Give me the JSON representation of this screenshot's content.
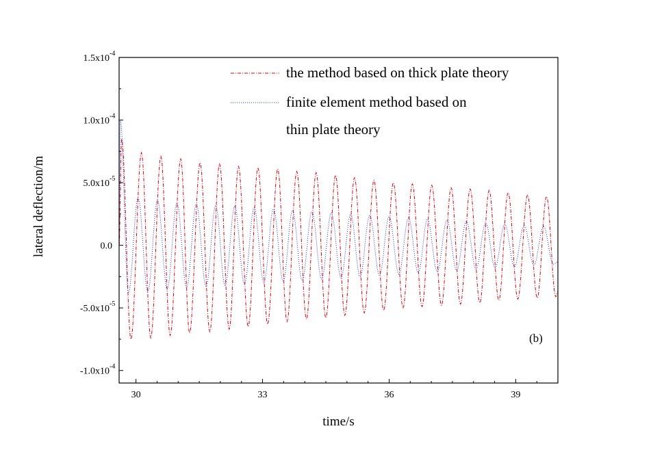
{
  "chart_data": {
    "type": "line",
    "xlabel": "time/s",
    "ylabel": "lateral deflection/m",
    "xlim": [
      29.6,
      40.0
    ],
    "ylim": [
      -0.00011,
      0.00015
    ],
    "x_ticks": [
      {
        "value": 30,
        "label": "30"
      },
      {
        "value": 33,
        "label": "33"
      },
      {
        "value": 36,
        "label": "36"
      },
      {
        "value": 39,
        "label": "39"
      }
    ],
    "y_ticks": [
      {
        "value": 0.00015,
        "mantissa": "1.5x10",
        "exponent": "-4"
      },
      {
        "value": 0.0001,
        "mantissa": "1.0x10",
        "exponent": "-4"
      },
      {
        "value": 5e-05,
        "mantissa": "5.0x10",
        "exponent": "-5"
      },
      {
        "value": 0,
        "mantissa": "0.0",
        "exponent": ""
      },
      {
        "value": -5e-05,
        "mantissa": "-5.0x10",
        "exponent": "-5"
      },
      {
        "value": -0.0001,
        "mantissa": "-1.0x10",
        "exponent": "-4"
      }
    ],
    "legend": {
      "placement": "top-right",
      "entries": [
        {
          "lines": [
            "the method based on thick plate theory"
          ]
        },
        {
          "lines": [
            "finite element method based on",
            "thin plate theory"
          ]
        }
      ]
    },
    "annotation": "(b)",
    "grid": false,
    "series": [
      {
        "color": "#d9000d",
        "dash": "dash-dot",
        "period_s": 0.4536,
        "start": 29.6,
        "end": 40.0,
        "peaks": [
          [
            29.66,
            8.5e-05
          ],
          [
            30.13,
            7.4e-05
          ],
          [
            30.59,
            7.1e-05
          ],
          [
            31.06,
            6.9e-05
          ],
          [
            31.52,
            6.6e-05
          ],
          [
            31.98,
            6.5e-05
          ],
          [
            32.43,
            6.3e-05
          ],
          [
            32.89,
            6.2e-05
          ],
          [
            33.36,
            6.1e-05
          ],
          [
            33.81,
            5.9e-05
          ],
          [
            34.27,
            5.8e-05
          ],
          [
            34.73,
            5.6e-05
          ],
          [
            35.18,
            5.4e-05
          ],
          [
            35.64,
            5.2e-05
          ],
          [
            36.1,
            5e-05
          ],
          [
            36.55,
            4.9e-05
          ],
          [
            37.01,
            4.8e-05
          ],
          [
            37.47,
            4.6e-05
          ],
          [
            37.92,
            4.5e-05
          ],
          [
            38.37,
            4.4e-05
          ],
          [
            38.82,
            4.2e-05
          ],
          [
            39.28,
            4e-05
          ],
          [
            39.73,
            3.9e-05
          ]
        ],
        "troughs": [
          [
            29.88,
            -7.5e-05
          ],
          [
            30.35,
            -7.4e-05
          ],
          [
            30.81,
            -7.2e-05
          ],
          [
            31.27,
            -7e-05
          ],
          [
            31.75,
            -6.9e-05
          ],
          [
            32.21,
            -6.7e-05
          ],
          [
            32.66,
            -6.5e-05
          ],
          [
            33.12,
            -6.3e-05
          ],
          [
            33.58,
            -6.1e-05
          ],
          [
            34.04,
            -5.9e-05
          ],
          [
            34.5,
            -5.8e-05
          ],
          [
            34.95,
            -5.6e-05
          ],
          [
            35.41,
            -5.4e-05
          ],
          [
            35.87,
            -5.2e-05
          ],
          [
            36.33,
            -5e-05
          ],
          [
            36.78,
            -4.9e-05
          ],
          [
            37.24,
            -4.8e-05
          ],
          [
            37.69,
            -4.7e-05
          ],
          [
            38.15,
            -4.6e-05
          ],
          [
            38.6,
            -4.4e-05
          ],
          [
            39.05,
            -4.3e-05
          ],
          [
            39.51,
            -4.2e-05
          ],
          [
            39.95,
            -4.1e-05
          ]
        ]
      },
      {
        "color": "#1f2ad0",
        "dash": "dot",
        "period_s": 0.457,
        "start": 29.6,
        "end": 40.0,
        "peaks": [
          [
            29.63,
            0.0001
          ],
          [
            30.05,
            3.8e-05
          ],
          [
            30.51,
            3.6e-05
          ],
          [
            30.97,
            3.4e-05
          ],
          [
            31.43,
            3.3e-05
          ],
          [
            31.89,
            3.2e-05
          ],
          [
            32.34,
            3.1e-05
          ],
          [
            32.8,
            3e-05
          ],
          [
            33.26,
            2.9e-05
          ],
          [
            33.71,
            2.8e-05
          ],
          [
            34.17,
            2.7e-05
          ],
          [
            34.63,
            2.6e-05
          ],
          [
            35.09,
            2.5e-05
          ],
          [
            35.54,
            2.4e-05
          ],
          [
            36.0,
            2.3e-05
          ],
          [
            36.46,
            2.2e-05
          ],
          [
            36.91,
            2.1e-05
          ],
          [
            37.37,
            2e-05
          ],
          [
            37.83,
            1.9e-05
          ],
          [
            38.29,
            1.8e-05
          ],
          [
            38.74,
            1.7e-05
          ],
          [
            39.2,
            1.6e-05
          ],
          [
            39.66,
            1.5e-05
          ]
        ],
        "troughs": [
          [
            29.82,
            -3.8e-05
          ],
          [
            30.28,
            -3.7e-05
          ],
          [
            30.74,
            -3.5e-05
          ],
          [
            31.2,
            -3.4e-05
          ],
          [
            31.66,
            -3.3e-05
          ],
          [
            32.11,
            -3.2e-05
          ],
          [
            32.57,
            -3.1e-05
          ],
          [
            33.03,
            -3e-05
          ],
          [
            33.49,
            -2.9e-05
          ],
          [
            33.94,
            -2.8e-05
          ],
          [
            34.4,
            -2.7e-05
          ],
          [
            34.86,
            -2.6e-05
          ],
          [
            35.31,
            -2.5e-05
          ],
          [
            35.77,
            -2.4e-05
          ],
          [
            36.23,
            -2.3e-05
          ],
          [
            36.69,
            -2.2e-05
          ],
          [
            37.14,
            -2.1e-05
          ],
          [
            37.6,
            -2e-05
          ],
          [
            38.06,
            -1.9e-05
          ],
          [
            38.51,
            -1.8e-05
          ],
          [
            38.97,
            -1.7e-05
          ],
          [
            39.43,
            -1.6e-05
          ],
          [
            39.89,
            -1.5e-05
          ]
        ]
      }
    ]
  }
}
